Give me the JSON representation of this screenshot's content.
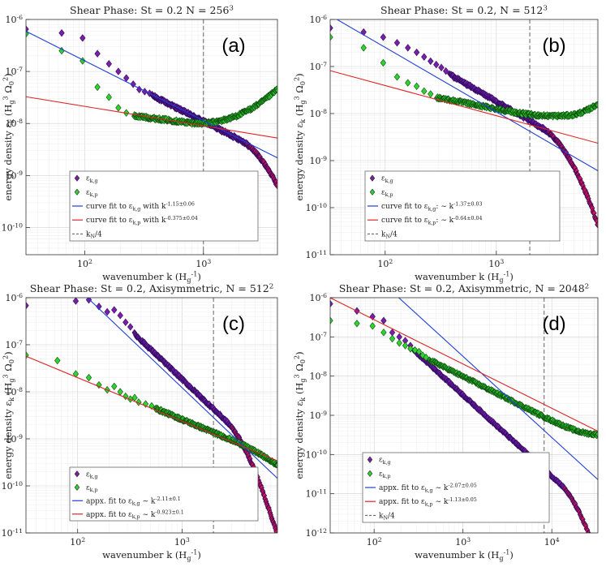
{
  "figure": {
    "xlabel": "wavenumber k (H_g^{-1})",
    "ylabel": "energy density ε_k (H_g^3 Ω_0^2)"
  },
  "chart_data": [
    {
      "type": "scatter",
      "panel": "(a)",
      "title": "Shear Phase: St = 0.2 N = 256^3",
      "xlabel": "wavenumber k (H_g^{-1})",
      "ylabel": "energy density ε_k (H_g^3 Ω_0^2)",
      "xscale": "log",
      "yscale": "log",
      "xlim": [
        32,
        4200
      ],
      "ylim": [
        3e-11,
        1e-06
      ],
      "xticks": [
        100,
        1000
      ],
      "xtick_labels": [
        "10^2",
        "10^3"
      ],
      "yticks": [
        1e-10,
        1e-09,
        1e-08,
        1e-07,
        1e-06
      ],
      "ytick_labels": [
        "10^-10",
        "10^-9",
        "10^-8",
        "10^-7",
        "10^-6"
      ],
      "kN4": 1000,
      "series": [
        {
          "name": "ε_{k,g}",
          "kind": "markers",
          "color": "#7a1fa6",
          "edge": "#2b0a60",
          "points": [
            [
              32,
              6.5e-07
            ],
            [
              64,
              5.5e-07
            ],
            [
              96,
              4.4e-07
            ],
            [
              128,
              2.2e-07
            ],
            [
              160,
              1.4e-07
            ],
            [
              192,
              1e-07
            ],
            [
              224,
              7.5e-08
            ],
            [
              256,
              5.7e-08
            ],
            [
              288,
              4.5e-08
            ],
            [
              320,
              4.1e-08
            ],
            [
              352,
              3.8e-08
            ]
          ],
          "dense": {
            "x0": 370,
            "x1": 4200,
            "y0": 3.45e-08,
            "a1": -1.15,
            "xc": 2000,
            "ac": 5.0
          }
        },
        {
          "name": "ε_{k,p}",
          "kind": "markers",
          "color": "#2fd32f",
          "edge": "#0f4a0f",
          "points": [
            [
              32,
              5.3e-07
            ],
            [
              64,
              2.5e-07
            ],
            [
              96,
              1.6e-07
            ],
            [
              128,
              5e-08
            ],
            [
              160,
              3.2e-08
            ],
            [
              192,
              2e-08
            ],
            [
              224,
              1.6e-08
            ]
          ],
          "dense": {
            "x0": 260,
            "x1": 4200,
            "y0": 1.4e-08,
            "a1": -0.28,
            "xc": 750,
            "ac": -1.5,
            "xm": 2600,
            "am": 0.35
          }
        },
        {
          "name": "curve fit to ε_{k,g} with k^{-1.15±0.06}",
          "kind": "line",
          "color": "#1f3fd6",
          "A": 3.2e-05,
          "slope": -1.15
        },
        {
          "name": "curve fit to ε_{k,p} with k^{-0.375±0.04}",
          "kind": "line",
          "color": "#e02424",
          "A": 1.2e-07,
          "slope": -0.375
        },
        {
          "name": "k_N/4",
          "kind": "vline",
          "color": "#555555",
          "x": 1000
        }
      ],
      "legend": [
        {
          "label": "ε_{k,g}",
          "kind": "diamond",
          "color": "#7a1fa6"
        },
        {
          "label": "ε_{k,p}",
          "kind": "diamond",
          "color": "#2fd32f"
        },
        {
          "label": "curve fit to ε_{k,g} with k^{-1.15±0.06}",
          "kind": "line",
          "color": "#1f3fd6"
        },
        {
          "label": "curve fit to ε_{k,p} with k^{-0.375±0.04}",
          "kind": "line",
          "color": "#e02424"
        },
        {
          "label": "k_N/4",
          "kind": "dash",
          "color": "#555555"
        }
      ]
    },
    {
      "type": "scatter",
      "panel": "(b)",
      "title": "Shear Phase: St = 0.2, N = 512^3",
      "xlabel": "wavenumber k (H_g^{-1})",
      "ylabel": "energy density ε_k (H_g^3 Ω_0^2)",
      "xscale": "log",
      "yscale": "log",
      "xlim": [
        32,
        8200
      ],
      "ylim": [
        1e-11,
        1e-06
      ],
      "xticks": [
        100,
        1000
      ],
      "xtick_labels": [
        "10^2",
        "10^3"
      ],
      "yticks": [
        1e-11,
        1e-10,
        1e-09,
        1e-08,
        1e-07,
        1e-06
      ],
      "ytick_labels": [
        "10^-11",
        "10^-10",
        "10^-9",
        "10^-8",
        "10^-7",
        "10^-6"
      ],
      "kN4": 2000,
      "series": [
        {
          "name": "ε_{k,g}",
          "kind": "markers",
          "color": "#7a1fa6",
          "edge": "#2b0a60",
          "points": [
            [
              32,
              6.6e-07
            ],
            [
              64,
              5.4e-07
            ],
            [
              96,
              4.2e-07
            ],
            [
              128,
              3.2e-07
            ],
            [
              160,
              2.5e-07
            ],
            [
              192,
              2e-07
            ],
            [
              224,
              1.6e-07
            ],
            [
              256,
              1.3e-07
            ],
            [
              288,
              1.1e-07
            ],
            [
              320,
              9.5e-08
            ],
            [
              352,
              8e-08
            ]
          ],
          "dense": {
            "x0": 380,
            "x1": 8200,
            "y0": 6.8e-08,
            "a1": -1.37,
            "xc": 2600,
            "ac": 5.5
          }
        },
        {
          "name": "ε_{k,p}",
          "kind": "markers",
          "color": "#2fd32f",
          "edge": "#0f4a0f",
          "points": [
            [
              32,
              4.2e-07
            ],
            [
              64,
              2.5e-07
            ],
            [
              96,
              1.2e-07
            ],
            [
              128,
              6e-08
            ],
            [
              160,
              4.5e-08
            ],
            [
              192,
              3.8e-08
            ],
            [
              224,
              3e-08
            ],
            [
              256,
              2.6e-08
            ]
          ],
          "dense": {
            "x0": 290,
            "x1": 8200,
            "y0": 2.2e-08,
            "a1": -0.45,
            "xc": 1400,
            "ac": -0.6,
            "xm": 4300,
            "am": 2.1
          }
        },
        {
          "name": "curve fit to ε_{k,g}: ∼k^{-1.37±0.03}",
          "kind": "line",
          "color": "#1f3fd6",
          "A": 0.00014,
          "slope": -1.37
        },
        {
          "name": "curve fit to ε_{k,p}: ∼k^{-0.64±0.04}",
          "kind": "line",
          "color": "#e02424",
          "A": 7.5e-07,
          "slope": -0.64
        },
        {
          "name": "k_N/4",
          "kind": "vline",
          "color": "#555555",
          "x": 2000
        }
      ],
      "legend": [
        {
          "label": "ε_{k,g}",
          "kind": "diamond",
          "color": "#7a1fa6"
        },
        {
          "label": "ε_{k,p}",
          "kind": "diamond",
          "color": "#2fd32f"
        },
        {
          "label": "curve fit to ε_{k,g}: ∼ k^{-1.37±0.03}",
          "kind": "line",
          "color": "#1f3fd6"
        },
        {
          "label": "curve fit to ε_{k,p}: ∼ k^{-0.64±0.04}",
          "kind": "line",
          "color": "#e02424"
        },
        {
          "label": "k_N/4",
          "kind": "dash",
          "color": "#555555"
        }
      ]
    },
    {
      "type": "scatter",
      "panel": "(c)",
      "title": "Shear Phase: St = 0.2, Axisymmetric, N = 512^2",
      "xlabel": "wavenumber k (H_g^{-1})",
      "ylabel": "energy density ε_k (H_g^3 Ω_0^2)",
      "xscale": "log",
      "yscale": "log",
      "xlim": [
        32,
        8200
      ],
      "ylim": [
        1e-11,
        1e-06
      ],
      "xticks": [
        100,
        1000
      ],
      "xtick_labels": [
        "10^2",
        "10^3"
      ],
      "yticks": [
        1e-11,
        1e-10,
        1e-09,
        1e-08,
        1e-07,
        1e-06
      ],
      "ytick_labels": [
        "10^-11",
        "10^-10",
        "10^-9",
        "10^-8",
        "10^-7",
        "10^-6"
      ],
      "kN4": 2000,
      "series": [
        {
          "name": "ε_{k,g}",
          "kind": "markers",
          "color": "#7a1fa6",
          "edge": "#2b0a60",
          "points": [
            [
              32,
              6.8e-07
            ],
            [
              96,
              8.5e-07
            ],
            [
              128,
              9e-07
            ],
            [
              160,
              6.5e-07
            ],
            [
              192,
              5e-07
            ],
            [
              224,
              5.5e-07
            ],
            [
              256,
              4.2e-07
            ],
            [
              288,
              3e-07
            ],
            [
              320,
              2.4e-07
            ]
          ],
          "dense": {
            "x0": 350,
            "x1": 8200,
            "y0": 1.7e-07,
            "a1": -2.11,
            "xc": 2600,
            "ac": 6.0,
            "xm": 5200,
            "am": 2.6
          }
        },
        {
          "name": "ε_{k,p}",
          "kind": "markers",
          "color": "#2fd32f",
          "edge": "#0f4a0f",
          "points": [
            [
              32,
              6e-08
            ],
            [
              64,
              4.6e-08
            ],
            [
              96,
              2.4e-08
            ],
            [
              128,
              2e-08
            ],
            [
              160,
              1.4e-08
            ],
            [
              192,
              1.1e-08
            ],
            [
              224,
              1.3e-08
            ],
            [
              256,
              1e-08
            ],
            [
              288,
              8e-09
            ],
            [
              320,
              7e-09
            ],
            [
              352,
              7.5e-09
            ],
            [
              384,
              6e-09
            ],
            [
              448,
              5.5e-09
            ],
            [
              512,
              5e-09
            ]
          ],
          "dense": {
            "x0": 560,
            "x1": 8200,
            "y0": 4.4e-09,
            "a1": -0.92,
            "xc": 3000,
            "ac": 0.7
          }
        },
        {
          "name": "appx. fit to ε_{k,g} ∼ k^{-2.11±0.1}",
          "kind": "line",
          "color": "#1f3fd6",
          "A": 0.0262,
          "slope": -2.11
        },
        {
          "name": "appx. fit to ε_{k,p} ∼ k^{-0.923±0.1}",
          "kind": "line",
          "color": "#e02424",
          "A": 1.4e-06,
          "slope": -0.923
        },
        {
          "name": "k_N/4",
          "kind": "vline",
          "color": "#555555",
          "x": 2000
        }
      ],
      "legend": [
        {
          "label": "ε_{k,g}",
          "kind": "diamond",
          "color": "#7a1fa6"
        },
        {
          "label": "ε_{k,p}",
          "kind": "diamond",
          "color": "#2fd32f"
        },
        {
          "label": "appx. fit to ε_{k,g} ∼ k^{-2.11±0.1}",
          "kind": "line",
          "color": "#1f3fd6"
        },
        {
          "label": "appx. fit to ε_{k,p} ∼ k^{-0.923±0.1}",
          "kind": "line",
          "color": "#e02424"
        }
      ]
    },
    {
      "type": "scatter",
      "panel": "(d)",
      "title": "Shear Phase: St = 0.2, Axisymmetric, N = 2048^2",
      "xlabel": "wavenumber k (H_g^{-1})",
      "ylabel": "energy density ε_k (H_g^3 Ω_0^2)",
      "xscale": "log",
      "yscale": "log",
      "xlim": [
        32,
        33000
      ],
      "ylim": [
        1e-12,
        1e-06
      ],
      "xticks": [
        100,
        1000,
        10000
      ],
      "xtick_labels": [
        "10^2",
        "10^3",
        "10^4"
      ],
      "yticks": [
        1e-12,
        1e-11,
        1e-10,
        1e-09,
        1e-08,
        1e-07,
        1e-06
      ],
      "ytick_labels": [
        "10^-12",
        "10^-11",
        "10^-10",
        "10^-9",
        "10^-8",
        "10^-7",
        "10^-6"
      ],
      "kN4": 8200,
      "series": [
        {
          "name": "ε_{k,g}",
          "kind": "markers",
          "color": "#7a1fa6",
          "edge": "#2b0a60",
          "points": [
            [
              32,
              7e-07
            ],
            [
              64,
              4.6e-07
            ],
            [
              96,
              3.3e-07
            ],
            [
              128,
              2.6e-07
            ],
            [
              160,
              1.3e-07
            ],
            [
              192,
              1e-07
            ],
            [
              224,
              8e-08
            ],
            [
              256,
              6e-08
            ]
          ],
          "dense": {
            "x0": 280,
            "x1": 33000,
            "y0": 4.6e-08,
            "a1": -2.07,
            "xc": 12000,
            "ac": 5.5
          }
        },
        {
          "name": "ε_{k,p}",
          "kind": "markers",
          "color": "#2fd32f",
          "edge": "#0f4a0f",
          "points": [
            [
              32,
              2.6e-07
            ],
            [
              64,
              2.2e-07
            ],
            [
              96,
              1.9e-07
            ],
            [
              128,
              1.3e-07
            ],
            [
              160,
              9e-08
            ],
            [
              192,
              7e-08
            ],
            [
              224,
              6e-08
            ],
            [
              256,
              5e-08
            ],
            [
              288,
              4.6e-08
            ],
            [
              320,
              4.2e-08
            ],
            [
              352,
              3.4e-08
            ],
            [
              384,
              3e-08
            ]
          ],
          "dense": {
            "x0": 420,
            "x1": 33000,
            "y0": 2.6e-08,
            "a1": -1.13,
            "xc": 7000,
            "ac": -0.3,
            "xm": 16000,
            "am": 1.0
          }
        },
        {
          "name": "appx. fit to ε_{k,g} ∼ k^{-2.07±0.05}",
          "kind": "line",
          "color": "#1f3fd6",
          "A": 0.0517,
          "slope": -2.07
        },
        {
          "name": "appx. fit to ε_{k,p} ∼ k^{-1.13±0.05}",
          "kind": "line",
          "color": "#e02424",
          "A": 5e-05,
          "slope": -1.13
        },
        {
          "name": "k_N/4",
          "kind": "vline",
          "color": "#555555",
          "x": 8200
        }
      ],
      "legend": [
        {
          "label": "ε_{k,g}",
          "kind": "diamond",
          "color": "#7a1fa6"
        },
        {
          "label": "ε_{k,p}",
          "kind": "diamond",
          "color": "#2fd32f"
        },
        {
          "label": "appx. fit to ε_{k,g} ∼ k^{-2.07±0.05}",
          "kind": "line",
          "color": "#1f3fd6"
        },
        {
          "label": "appx. fit to ε_{k,p} ∼ k^{-1.13±0.05}",
          "kind": "line",
          "color": "#e02424"
        },
        {
          "label": "k_N/4",
          "kind": "dash",
          "color": "#555555"
        }
      ]
    }
  ]
}
